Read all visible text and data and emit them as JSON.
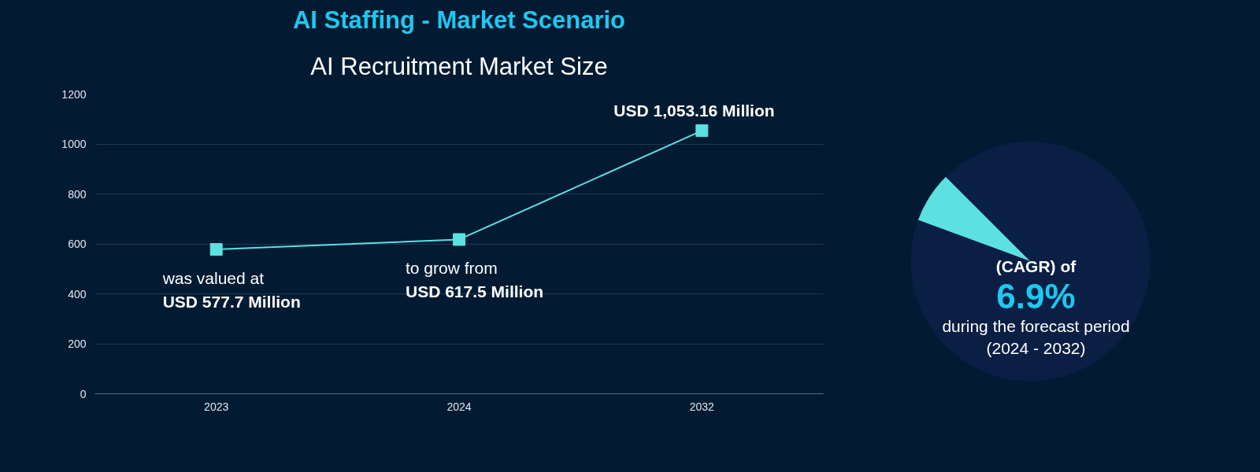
{
  "chart_data": [
    {
      "type": "line",
      "title": "AI Staffing - Market Scenario",
      "subtitle": "AI Recruitment Market Size",
      "categories": [
        "2023",
        "2024",
        "2032"
      ],
      "series": [
        {
          "color": "#5ce0e0",
          "values": [
            577.7,
            617.5,
            1053.16
          ]
        }
      ],
      "value_labels": [
        "USD 577.7 Million",
        "USD 617.5 Million",
        "USD 1,053.16 Million"
      ],
      "annotations": [
        {
          "text": "was valued at",
          "x": "2023",
          "y": 577.7
        },
        {
          "text": "to grow from",
          "x": "2024",
          "y": 617.5
        }
      ],
      "ylim": [
        0,
        1200
      ],
      "yticks": [
        0,
        200,
        400,
        600,
        800,
        1000,
        1200
      ],
      "grid": "y",
      "marker": "square",
      "line_style": "solid"
    },
    {
      "type": "pie",
      "categories": [
        null,
        null
      ],
      "values": [
        6.9,
        93.1
      ],
      "colors": [
        "#5ce0e0",
        "#0b1f45"
      ],
      "annotations": [
        "(CAGR) of",
        "6.9%",
        "during the forecast period",
        "(2024 - 2032)"
      ]
    }
  ]
}
